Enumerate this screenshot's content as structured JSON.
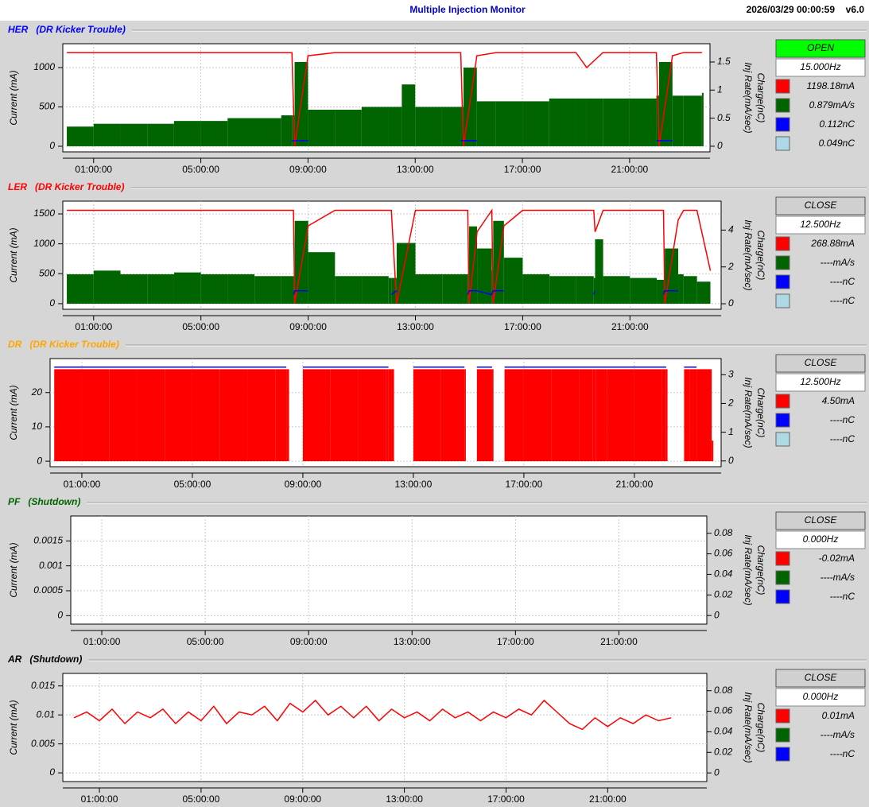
{
  "header": {
    "title": "Multiple Injection Monitor",
    "timestamp": "2026/03/29 00:00:59",
    "version": "v6.0"
  },
  "chart_data": [
    {
      "type": "line",
      "title": "HER",
      "subtitle": "(DR Kicker Trouble)",
      "title_color": "#0000ff",
      "ylabel": "Current (mA)",
      "y2labels": [
        "Charge(nC)",
        "Inj Rate(mA/sec)"
      ],
      "button": "OPEN",
      "button_color": "#00ff00",
      "rate": "15.000Hz",
      "readouts": [
        {
          "color": "#ff0000",
          "text": "1198.18mA"
        },
        {
          "color": "#006400",
          "text": "0.879mA/s"
        },
        {
          "color": "#0000ff",
          "text": "0.112nC"
        },
        {
          "color": "#add8e6",
          "text": "0.049nC"
        }
      ],
      "xlim": [
        -0.15,
        24
      ],
      "ylim": [
        -71,
        1303
      ],
      "yticks": [
        0,
        500,
        1000
      ],
      "y2lim": [
        -0.1,
        1.825
      ],
      "y2ticks": [
        0,
        0.5,
        1,
        1.5
      ],
      "xticks": [
        {
          "value": 1,
          "label": "01:00:00"
        },
        {
          "value": 5,
          "label": "05:00:00"
        },
        {
          "value": 9,
          "label": "09:00:00"
        },
        {
          "value": 13,
          "label": "13:00:00"
        },
        {
          "value": 17,
          "label": "17:00:00"
        },
        {
          "value": 21,
          "label": "21:00:00"
        }
      ],
      "grid": true,
      "x": [
        0,
        1,
        2,
        3,
        4,
        5,
        6,
        7,
        8,
        8.4,
        8.5,
        9,
        10,
        11,
        12,
        12.5,
        13,
        14,
        14.7,
        14.8,
        15.3,
        16,
        17,
        18,
        19,
        19.4,
        20,
        21,
        22,
        22.1,
        22.6,
        23,
        23.7
      ],
      "series": [
        {
          "kind": "area",
          "axis": "y2",
          "color": "#006400",
          "values": [
            0.35,
            0.4,
            0.4,
            0.4,
            0.45,
            0.45,
            0.5,
            0.5,
            0.55,
            0.55,
            1.5,
            0.65,
            0.65,
            0.7,
            0.7,
            1.1,
            0.7,
            0.7,
            0.7,
            1.4,
            0.8,
            0.8,
            0.8,
            0.85,
            0.85,
            0.85,
            0.85,
            0.85,
            0.9,
            1.5,
            0.9,
            0.9,
            0.95
          ]
        },
        {
          "kind": "line",
          "color": "#ff0000",
          "values": [
            1190,
            1190,
            1190,
            1190,
            1190,
            1190,
            1190,
            1190,
            1190,
            1190,
            0,
            1150,
            1190,
            1190,
            1190,
            1190,
            1190,
            1190,
            1190,
            0,
            1150,
            1190,
            1190,
            1190,
            1190,
            1000,
            1190,
            1190,
            1190,
            0,
            1150,
            1190,
            1190
          ]
        },
        {
          "kind": "line",
          "axis": "y2",
          "color": "#0000ff",
          "values": [
            null,
            null,
            null,
            null,
            null,
            null,
            null,
            null,
            null,
            0.1,
            0.1,
            0.1,
            null,
            null,
            null,
            null,
            null,
            null,
            0.1,
            0.1,
            0.1,
            null,
            null,
            null,
            null,
            null,
            null,
            null,
            0.1,
            0.1,
            0.1,
            null,
            null
          ]
        }
      ]
    },
    {
      "type": "line",
      "title": "LER",
      "subtitle": "(DR Kicker Trouble)",
      "title_color": "#ff0000",
      "ylabel": "Current (mA)",
      "y2labels": [
        "Charge(nC)",
        "Inj Rate(mA/sec)"
      ],
      "button": "CLOSE",
      "button_color": "#d0d0d0",
      "rate": "12.500Hz",
      "readouts": [
        {
          "color": "#ff0000",
          "text": "268.88mA"
        },
        {
          "color": "#006400",
          "text": "----mA/s"
        },
        {
          "color": "#0000ff",
          "text": "----nC"
        },
        {
          "color": "#add8e6",
          "text": "----nC"
        }
      ],
      "xlim": [
        -0.15,
        24.4
      ],
      "ylim": [
        -94,
        1713
      ],
      "yticks": [
        0,
        500,
        1000,
        1500
      ],
      "y2lim": [
        -0.3,
        5.57
      ],
      "y2ticks": [
        0,
        2,
        4
      ],
      "xticks": [
        {
          "value": 1,
          "label": "01:00:00"
        },
        {
          "value": 5,
          "label": "05:00:00"
        },
        {
          "value": 9,
          "label": "09:00:00"
        },
        {
          "value": 13,
          "label": "13:00:00"
        },
        {
          "value": 17,
          "label": "17:00:00"
        },
        {
          "value": 21,
          "label": "21:00:00"
        }
      ],
      "grid": true,
      "x": [
        0,
        1,
        2,
        3,
        4,
        5,
        6,
        7,
        8,
        8.45,
        8.5,
        9,
        10,
        11,
        12,
        12.1,
        12.3,
        13,
        14,
        14.95,
        15.0,
        15.3,
        15.85,
        15.9,
        16.3,
        17,
        18,
        19,
        19.65,
        19.7,
        20,
        21,
        22,
        22.25,
        22.3,
        22.8,
        23,
        23.5,
        24
      ],
      "series": [
        {
          "kind": "area",
          "axis": "y2",
          "color": "#006400",
          "values": [
            1.6,
            1.8,
            1.6,
            1.6,
            1.7,
            1.6,
            1.6,
            1.5,
            1.5,
            1.5,
            4.5,
            2.8,
            1.5,
            1.5,
            1.4,
            1.4,
            3.3,
            1.6,
            1.6,
            1.6,
            4.2,
            3,
            1.8,
            4.5,
            2.5,
            1.6,
            1.5,
            1.5,
            1.4,
            3.5,
            1.5,
            1.4,
            1.3,
            1.3,
            3,
            1.6,
            1.5,
            1.2,
            null
          ]
        },
        {
          "kind": "line",
          "color": "#ff0000",
          "values": [
            1560,
            1560,
            1560,
            1560,
            1560,
            1560,
            1560,
            1560,
            1560,
            1560,
            0,
            1300,
            1560,
            1560,
            1560,
            1560,
            0,
            1560,
            1560,
            1560,
            0,
            1200,
            1560,
            0,
            1300,
            1560,
            1560,
            1560,
            1560,
            1200,
            1560,
            1560,
            1560,
            1560,
            0,
            1400,
            1560,
            1560,
            550
          ]
        },
        {
          "kind": "line",
          "axis": "y2",
          "color": "#0000ff",
          "values": [
            null,
            null,
            null,
            null,
            null,
            null,
            null,
            null,
            null,
            0.5,
            0.7,
            0.7,
            null,
            null,
            null,
            0.5,
            0.7,
            null,
            null,
            0.5,
            0.7,
            0.7,
            0.5,
            0.7,
            0.7,
            null,
            null,
            null,
            0.5,
            0.7,
            null,
            null,
            null,
            0.5,
            0.7,
            0.7,
            null,
            null,
            null
          ]
        }
      ]
    },
    {
      "type": "line",
      "title": "DR",
      "subtitle": "(DR Kicker Trouble)",
      "title_color": "#ffa500",
      "ylabel": "Current (mA)",
      "y2labels": [
        "Charge(nC)",
        "Inj Rate(mA/sec)"
      ],
      "button": "CLOSE",
      "button_color": "#d0d0d0",
      "rate": "12.500Hz",
      "readouts": [
        {
          "color": "#ff0000",
          "text": "4.50mA"
        },
        {
          "color": "#0000ff",
          "text": "----nC"
        },
        {
          "color": "#add8e6",
          "text": "----nC"
        }
      ],
      "xlim": [
        -0.15,
        24.14
      ],
      "ylim": [
        -1.6,
        29.9
      ],
      "yticks": [
        0,
        10,
        20
      ],
      "y2lim": [
        -0.2,
        3.56
      ],
      "y2ticks": [
        0,
        1,
        2,
        3
      ],
      "xticks": [
        {
          "value": 1,
          "label": "01:00:00"
        },
        {
          "value": 5,
          "label": "05:00:00"
        },
        {
          "value": 9,
          "label": "09:00:00"
        },
        {
          "value": 13,
          "label": "13:00:00"
        },
        {
          "value": 17,
          "label": "17:00:00"
        },
        {
          "value": 21,
          "label": "21:00:00"
        }
      ],
      "grid": true,
      "x": [
        0,
        1,
        2,
        3,
        4,
        5,
        6,
        7,
        8,
        8.4,
        8.5,
        9,
        10,
        11,
        12,
        12.1,
        12.3,
        13,
        14,
        14.85,
        14.9,
        15.3,
        15.85,
        15.9,
        16.3,
        17,
        18,
        19,
        19.5,
        19.6,
        20,
        21,
        22,
        22.15,
        22.2,
        22.8,
        23,
        23.25,
        23.8
      ],
      "series": [
        {
          "kind": "area",
          "color": "#ff0000",
          "values": [
            26.8,
            26.8,
            26.8,
            26.8,
            26.8,
            26.8,
            26.8,
            26.8,
            26.8,
            26.8,
            0,
            26.8,
            26.8,
            26.8,
            26.8,
            26.8,
            0,
            26.8,
            26.8,
            26.8,
            0,
            26.8,
            26.8,
            0,
            26.8,
            26.8,
            26.8,
            26.8,
            26.8,
            26.8,
            26.8,
            26.8,
            26.8,
            26.8,
            0,
            26.8,
            26.8,
            26.8,
            6
          ]
        },
        {
          "kind": "line",
          "color": "#0000ff",
          "values": [
            27.4,
            27.4,
            27.4,
            27.4,
            27.4,
            27.4,
            27.4,
            27.4,
            27.4,
            27.4,
            null,
            27.4,
            27.4,
            27.4,
            27.4,
            27.4,
            null,
            27.4,
            27.4,
            27.4,
            null,
            27.4,
            27.4,
            null,
            27.4,
            27.4,
            27.4,
            27.4,
            27.4,
            27.4,
            27.4,
            27.4,
            27.4,
            27.4,
            null,
            27.4,
            27.4,
            27.4,
            null
          ]
        }
      ]
    },
    {
      "type": "line",
      "title": "PF",
      "subtitle": "(Shutdown)",
      "title_color": "#006400",
      "ylabel": "Current (mA)",
      "y2labels": [
        "Charge(nC)",
        "Inj Rate(mA/sec)"
      ],
      "button": "CLOSE",
      "button_color": "#d0d0d0",
      "rate": "0.000Hz",
      "readouts": [
        {
          "color": "#ff0000",
          "text": "-0.02mA"
        },
        {
          "color": "#006400",
          "text": "----mA/s"
        },
        {
          "color": "#0000ff",
          "text": "----nC"
        }
      ],
      "xlim": [
        -0.2,
        24.4
      ],
      "ylim": [
        -0.00017,
        0.002
      ],
      "yticks": [
        0,
        0.0005,
        0.001,
        0.0015
      ],
      "y2lim": [
        -0.0084,
        0.0968
      ],
      "y2ticks": [
        0,
        0.02,
        0.04,
        0.06,
        0.08
      ],
      "xticks": [
        {
          "value": 1,
          "label": "01:00:00"
        },
        {
          "value": 5,
          "label": "05:00:00"
        },
        {
          "value": 9,
          "label": "09:00:00"
        },
        {
          "value": 13,
          "label": "13:00:00"
        },
        {
          "value": 17,
          "label": "17:00:00"
        },
        {
          "value": 21,
          "label": "21:00:00"
        }
      ],
      "grid": true,
      "x": [],
      "series": []
    },
    {
      "type": "line",
      "title": "AR",
      "subtitle": "(Shutdown)",
      "title_color": "#000000",
      "ylabel": "Current (mA)",
      "y2labels": [
        "Charge(nC)",
        "Inj Rate(mA/sec)"
      ],
      "button": "CLOSE",
      "button_color": "#d0d0d0",
      "rate": "0.000Hz",
      "readouts": [
        {
          "color": "#ff0000",
          "text": "0.01mA"
        },
        {
          "color": "#006400",
          "text": "----mA/s"
        },
        {
          "color": "#0000ff",
          "text": "----nC"
        }
      ],
      "xlim": [
        -0.44,
        24.9
      ],
      "ylim": [
        -0.0015,
        0.01716
      ],
      "yticks": [
        0,
        0.005,
        0.01,
        0.015
      ],
      "y2lim": [
        -0.0084,
        0.0968
      ],
      "y2ticks": [
        0,
        0.02,
        0.04,
        0.06,
        0.08
      ],
      "xticks": [
        {
          "value": 1,
          "label": "01:00:00"
        },
        {
          "value": 5,
          "label": "05:00:00"
        },
        {
          "value": 9,
          "label": "09:00:00"
        },
        {
          "value": 13,
          "label": "13:00:00"
        },
        {
          "value": 17,
          "label": "17:00:00"
        },
        {
          "value": 21,
          "label": "21:00:00"
        }
      ],
      "grid": true,
      "x": [
        0,
        0.5,
        1,
        1.5,
        2,
        2.5,
        3,
        3.5,
        4,
        4.5,
        5,
        5.5,
        6,
        6.5,
        7,
        7.5,
        8,
        8.5,
        9,
        9.5,
        10,
        10.5,
        11,
        11.5,
        12,
        12.5,
        13,
        13.5,
        14,
        14.5,
        15,
        15.5,
        16,
        16.5,
        17,
        17.5,
        18,
        18.5,
        19,
        19.5,
        20,
        20.5,
        21,
        21.5,
        22,
        22.5,
        23,
        23.5
      ],
      "series": [
        {
          "kind": "line",
          "color": "#ff0000",
          "values": [
            0.0095,
            0.0105,
            0.009,
            0.011,
            0.0085,
            0.0105,
            0.0095,
            0.011,
            0.0085,
            0.0105,
            0.009,
            0.0115,
            0.0085,
            0.0105,
            0.01,
            0.0115,
            0.009,
            0.012,
            0.0105,
            0.0125,
            0.01,
            0.0115,
            0.0095,
            0.0115,
            0.009,
            0.011,
            0.0095,
            0.0105,
            0.009,
            0.011,
            0.0095,
            0.0105,
            0.009,
            0.0105,
            0.0095,
            0.011,
            0.01,
            0.0125,
            0.0105,
            0.0085,
            0.0075,
            0.0095,
            0.008,
            0.0095,
            0.0085,
            0.01,
            0.009,
            0.0095
          ]
        }
      ]
    }
  ]
}
